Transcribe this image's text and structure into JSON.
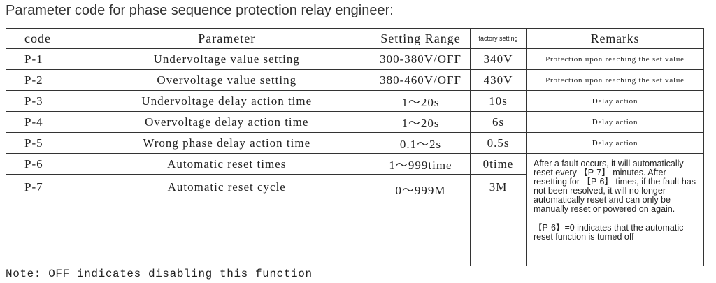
{
  "title": "Parameter code for phase sequence protection relay engineer:",
  "table": {
    "header": [
      "code",
      "Parameter",
      "Setting Range",
      "factory setting",
      "Remarks"
    ],
    "rows": [
      {
        "code": "P-1",
        "parameter": "Undervoltage value setting",
        "range": "300-380V/OFF",
        "factory": "340V",
        "remarks": "Protection upon reaching the set value"
      },
      {
        "code": "P-2",
        "parameter": "Overvoltage value setting",
        "range": "380-460V/OFF",
        "factory": "430V",
        "remarks": "Protection upon reaching the set value"
      },
      {
        "code": "P-3",
        "parameter": "Undervoltage delay action time",
        "range": "1～20s",
        "factory": "10s",
        "remarks": "Delay action"
      },
      {
        "code": "P-4",
        "parameter": "Overvoltage delay action time",
        "range": "1～20s",
        "factory": "6s",
        "remarks": "Delay action"
      },
      {
        "code": "P-5",
        "parameter": "Wrong phase delay action time",
        "range": "0.1～2s",
        "factory": "0.5s",
        "remarks": "Delay action"
      },
      {
        "code": "P-6",
        "parameter": "Automatic reset times",
        "range": "1～999time",
        "factory": "0time",
        "remarks": [
          "After a fault occurs, it will automatically reset every 【P-7】 minutes. After resetting for 【P-6】 times, if the fault has not been resolved, it will no longer automatically reset and can only be manually reset or powered on again.",
          "【P-6】=0 indicates that the automatic reset function is turned off"
        ]
      },
      {
        "code": "P-7",
        "parameter": "Automatic reset cycle",
        "range": "0～999M",
        "factory": "3M"
      }
    ]
  },
  "note": "Note: OFF indicates disabling this function"
}
